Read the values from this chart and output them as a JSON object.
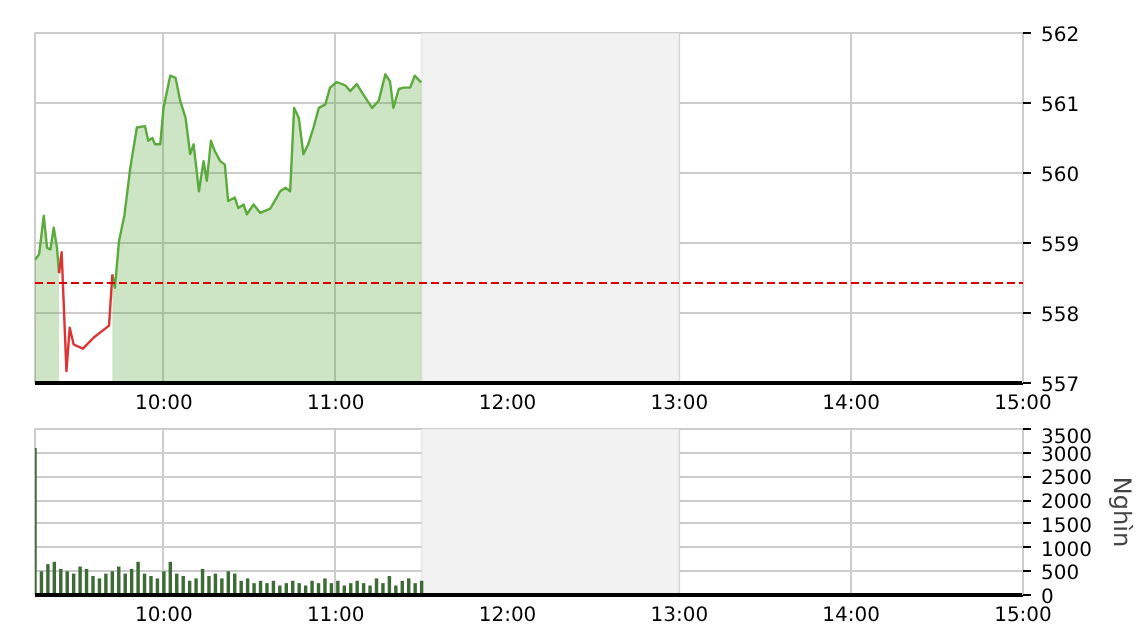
{
  "chart_data": [
    {
      "type": "area",
      "xlim": [
        9.25,
        15
      ],
      "ylim": [
        557,
        562
      ],
      "xticks": [
        {
          "value": 10,
          "label": "10:00"
        },
        {
          "value": 11,
          "label": "11:00"
        },
        {
          "value": 12,
          "label": "12:00"
        },
        {
          "value": 13,
          "label": "13:00"
        },
        {
          "value": 14,
          "label": "14:00"
        },
        {
          "value": 15,
          "label": "15:00"
        }
      ],
      "yticks": [
        557,
        558,
        559,
        560,
        561,
        562
      ],
      "grid": true,
      "ref_lines": [
        {
          "axis": "y",
          "value": 558.43,
          "color": "#dd0000",
          "line_style": "dashed"
        }
      ],
      "bands": [
        {
          "axis": "x",
          "from": 11.5,
          "to": 13,
          "color": "#f2f2f2"
        }
      ],
      "series": [
        {
          "color": "#5aaa3c",
          "x": [
            9.25,
            9.274,
            9.301,
            9.32,
            9.34,
            9.359,
            9.378,
            9.39,
            9.405,
            9.433,
            9.452,
            9.475,
            9.529,
            9.592,
            9.681,
            9.7,
            9.715,
            9.739,
            9.77,
            9.805,
            9.843,
            9.89,
            9.909,
            9.933,
            9.948,
            9.979,
            9.998,
            10.037,
            10.068,
            10.095,
            10.126,
            10.153,
            10.173,
            10.204,
            10.231,
            10.25,
            10.274,
            10.297,
            10.328,
            10.355,
            10.374,
            10.413,
            10.433,
            10.464,
            10.483,
            10.522,
            10.561,
            10.619,
            10.657,
            10.677,
            10.708,
            10.735,
            10.758,
            10.785,
            10.812,
            10.84,
            10.871,
            10.902,
            10.94,
            10.967,
            11.006,
            11.057,
            11.084,
            11.123,
            11.161,
            11.212,
            11.25,
            11.289,
            11.316,
            11.336,
            11.367,
            11.394,
            11.433,
            11.46,
            11.491,
            11.5
          ],
          "values": [
            558.76,
            558.84,
            559.39,
            558.93,
            558.91,
            559.22,
            558.93,
            558.57,
            null,
            null,
            null,
            null,
            null,
            null,
            null,
            558.55,
            558.36,
            559.03,
            559.39,
            560.08,
            560.65,
            560.67,
            560.46,
            560.5,
            560.41,
            560.41,
            560.93,
            561.39,
            561.36,
            561.03,
            560.79,
            560.27,
            560.41,
            559.74,
            560.17,
            559.89,
            560.46,
            560.31,
            560.17,
            560.12,
            559.6,
            559.65,
            559.5,
            559.55,
            559.41,
            559.55,
            559.43,
            559.49,
            559.65,
            559.74,
            559.79,
            559.74,
            560.93,
            560.79,
            560.27,
            560.41,
            560.65,
            560.93,
            560.98,
            561.22,
            561.3,
            561.25,
            561.17,
            561.27,
            561.12,
            560.93,
            561.03,
            561.41,
            561.31,
            560.93,
            561.2,
            561.22,
            561.22,
            561.39,
            561.31,
            561.3
          ]
        },
        {
          "type": "line",
          "color": "#dd3333",
          "x": [
            9.39,
            9.405,
            9.433,
            9.452,
            9.475,
            9.529,
            9.592,
            9.681,
            9.7
          ],
          "values": [
            558.57,
            558.87,
            557.17,
            557.79,
            557.55,
            557.49,
            557.65,
            557.82,
            558.55
          ]
        }
      ]
    },
    {
      "type": "bar",
      "ylabel": "Nghìn",
      "color": "#3d6b35",
      "xlim": [
        9.25,
        15
      ],
      "ylim": [
        0,
        3500
      ],
      "xticks": [
        {
          "value": 10,
          "label": "10:00"
        },
        {
          "value": 11,
          "label": "11:00"
        },
        {
          "value": 12,
          "label": "12:00"
        },
        {
          "value": 13,
          "label": "13:00"
        },
        {
          "value": 14,
          "label": "14:00"
        },
        {
          "value": 15,
          "label": "15:00"
        }
      ],
      "yticks": [
        0,
        500,
        1000,
        1500,
        2000,
        2500,
        3000,
        3500
      ],
      "grid": true,
      "bands": [
        {
          "axis": "x",
          "from": 11.5,
          "to": 13,
          "color": "#f2f2f2"
        }
      ],
      "x": [
        9.25,
        9.2875,
        9.325,
        9.3625,
        9.4,
        9.4375,
        9.475,
        9.5125,
        9.55,
        9.5875,
        9.625,
        9.6625,
        9.7,
        9.7375,
        9.775,
        9.8125,
        9.85,
        9.8875,
        9.925,
        9.9625,
        10.0,
        10.0375,
        10.075,
        10.1125,
        10.15,
        10.1875,
        10.225,
        10.2625,
        10.3,
        10.3375,
        10.375,
        10.4125,
        10.45,
        10.4875,
        10.525,
        10.5625,
        10.6,
        10.6375,
        10.675,
        10.7125,
        10.75,
        10.7875,
        10.825,
        10.8625,
        10.9,
        10.9375,
        10.975,
        11.0125,
        11.05,
        11.0875,
        11.125,
        11.1625,
        11.2,
        11.2375,
        11.275,
        11.3125,
        11.35,
        11.3875,
        11.425,
        11.4625,
        11.5
      ],
      "values": [
        3100,
        500,
        650,
        700,
        550,
        500,
        450,
        600,
        550,
        400,
        350,
        450,
        500,
        600,
        450,
        550,
        700,
        450,
        400,
        350,
        500,
        700,
        450,
        400,
        300,
        350,
        550,
        400,
        450,
        350,
        500,
        450,
        300,
        350,
        250,
        300,
        250,
        300,
        200,
        250,
        300,
        250,
        200,
        300,
        250,
        350,
        250,
        300,
        200,
        250,
        300,
        250,
        200,
        350,
        250,
        400,
        200,
        300,
        350,
        250,
        300
      ]
    }
  ]
}
